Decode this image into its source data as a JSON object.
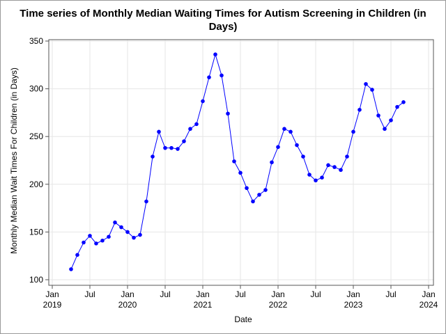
{
  "chart_data": {
    "type": "line",
    "title": "Time series of Monthly Median Waiting Times for Autism Screening in Children (in Days)",
    "x_label": "Date",
    "y_label": "Monthly Median Wait Times For Children (in Days)",
    "x": [
      "2019-04",
      "2019-05",
      "2019-06",
      "2019-07",
      "2019-08",
      "2019-09",
      "2019-10",
      "2019-11",
      "2019-12",
      "2020-01",
      "2020-02",
      "2020-03",
      "2020-04",
      "2020-05",
      "2020-06",
      "2020-07",
      "2020-08",
      "2020-09",
      "2020-10",
      "2020-11",
      "2020-12",
      "2021-01",
      "2021-02",
      "2021-03",
      "2021-04",
      "2021-05",
      "2021-06",
      "2021-07",
      "2021-08",
      "2021-09",
      "2021-10",
      "2021-11",
      "2021-12",
      "2022-01",
      "2022-02",
      "2022-03",
      "2022-04",
      "2022-05",
      "2022-06",
      "2022-07",
      "2022-08",
      "2022-09",
      "2022-10",
      "2022-11",
      "2022-12",
      "2023-01",
      "2023-02",
      "2023-03",
      "2023-04",
      "2023-05",
      "2023-06",
      "2023-07",
      "2023-08",
      "2023-09"
    ],
    "series": [
      {
        "name": "Monthly Median Wait Times For Children (in Days)",
        "color": "#0000ff",
        "values": [
          111,
          126,
          139,
          146,
          138,
          141,
          145,
          160,
          155,
          150,
          144,
          147,
          182,
          229,
          255,
          238,
          238,
          237,
          245,
          258,
          263,
          287,
          312,
          336,
          314,
          274,
          224,
          212,
          196,
          182,
          189,
          194,
          223,
          239,
          258,
          255,
          241,
          229,
          210,
          204,
          207,
          220,
          218,
          215,
          229,
          255,
          278,
          305,
          299,
          272,
          258,
          267,
          281,
          286
        ]
      }
    ],
    "xlim": [
      "2019-01",
      "2024-01"
    ],
    "xticks": [
      {
        "value": "2019-01",
        "label": "Jan 2019"
      },
      {
        "value": "2019-07",
        "label": "Jul"
      },
      {
        "value": "2020-01",
        "label": "Jan 2020"
      },
      {
        "value": "2020-07",
        "label": "Jul"
      },
      {
        "value": "2021-01",
        "label": "Jan 2021"
      },
      {
        "value": "2021-07",
        "label": "Jul"
      },
      {
        "value": "2022-01",
        "label": "Jan 2022"
      },
      {
        "value": "2022-07",
        "label": "Jul"
      },
      {
        "value": "2023-01",
        "label": "Jan 2023"
      },
      {
        "value": "2023-07",
        "label": "Jul"
      },
      {
        "value": "2024-01",
        "label": "Jan 2024"
      }
    ],
    "ylim": [
      100,
      350
    ],
    "yticks": [
      100,
      150,
      200,
      250,
      300,
      350
    ],
    "grid": true
  }
}
